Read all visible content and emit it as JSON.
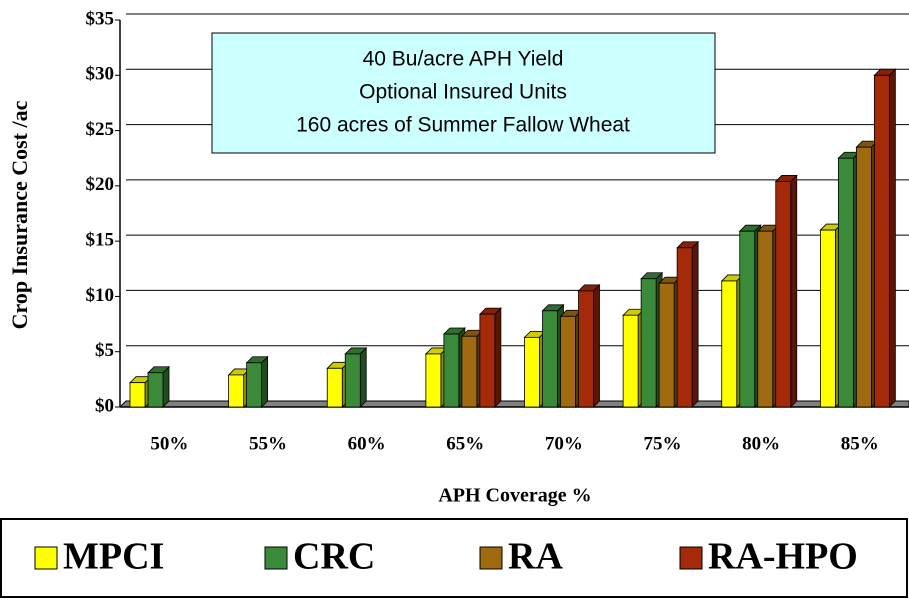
{
  "chart_data": {
    "type": "bar",
    "annotation": [
      "40 Bu/acre APH Yield",
      "Optional Insured Units",
      "160 acres of Summer Fallow Wheat"
    ],
    "x_label": "APH Coverage %",
    "y_label": "Crop Insurance Cost /ac",
    "categories": [
      "50%",
      "55%",
      "60%",
      "65%",
      "70%",
      "75%",
      "80%",
      "85%"
    ],
    "series": [
      {
        "name": "MPCI",
        "color": "#ffff00",
        "values": [
          2.2,
          2.9,
          3.5,
          4.8,
          6.3,
          8.3,
          11.4,
          16.0
        ]
      },
      {
        "name": "CRC",
        "color": "#3a8a3a",
        "values": [
          3.1,
          4.0,
          4.8,
          6.6,
          8.7,
          11.6,
          15.9,
          22.5
        ]
      },
      {
        "name": "RA",
        "color": "#a06a10",
        "values": [
          null,
          null,
          null,
          6.4,
          8.2,
          11.2,
          15.9,
          23.5
        ]
      },
      {
        "name": "RA-HPO",
        "color": "#a52a0a",
        "values": [
          null,
          null,
          null,
          8.4,
          10.5,
          14.4,
          20.4,
          30.0
        ]
      }
    ],
    "ylim": [
      0,
      35
    ],
    "yticks": [
      {
        "value": 0,
        "label": "$0"
      },
      {
        "value": 5,
        "label": "$5"
      },
      {
        "value": 10,
        "label": "$10"
      },
      {
        "value": 15,
        "label": "$15"
      },
      {
        "value": 20,
        "label": "$20"
      },
      {
        "value": 25,
        "label": "$25"
      },
      {
        "value": 30,
        "label": "$30"
      },
      {
        "value": 35,
        "label": "$35"
      }
    ],
    "grid": true
  }
}
